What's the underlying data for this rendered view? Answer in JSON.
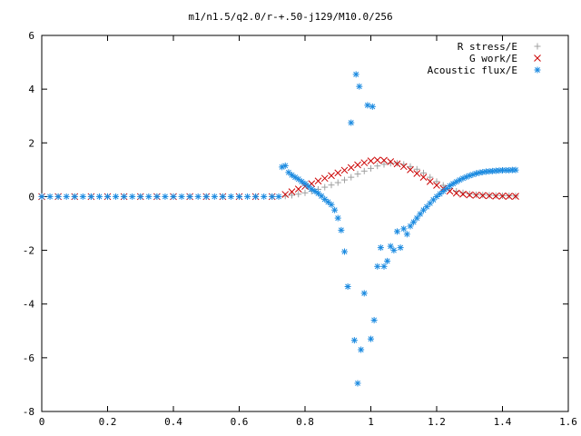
{
  "chart_data": {
    "type": "scatter",
    "title": "m1/n1.5/q2.0/r-+.50-j129/M10.0/256",
    "xlabel": "",
    "ylabel": "",
    "xlim": [
      0,
      1.6
    ],
    "ylim": [
      -8,
      6
    ],
    "xticks": [
      "0",
      "0.2",
      "0.4",
      "0.6",
      "0.8",
      "1",
      "1.2",
      "1.4",
      "1.6"
    ],
    "yticks": [
      "-8",
      "-6",
      "-4",
      "-2",
      "0",
      "2",
      "4",
      "6"
    ],
    "grid": false,
    "legend_position": "top-right",
    "series": [
      {
        "name": "R stress/E",
        "marker": "plus",
        "color": "#a0a0a0",
        "points": [
          [
            0.0,
            0
          ],
          [
            0.05,
            0
          ],
          [
            0.1,
            0
          ],
          [
            0.15,
            0
          ],
          [
            0.2,
            0
          ],
          [
            0.25,
            0
          ],
          [
            0.3,
            0
          ],
          [
            0.35,
            0
          ],
          [
            0.4,
            0
          ],
          [
            0.45,
            0
          ],
          [
            0.5,
            0
          ],
          [
            0.55,
            0
          ],
          [
            0.6,
            0
          ],
          [
            0.65,
            0
          ],
          [
            0.7,
            0
          ],
          [
            0.74,
            0.02
          ],
          [
            0.76,
            0.05
          ],
          [
            0.78,
            0.09
          ],
          [
            0.8,
            0.14
          ],
          [
            0.82,
            0.2
          ],
          [
            0.84,
            0.27
          ],
          [
            0.86,
            0.35
          ],
          [
            0.88,
            0.43
          ],
          [
            0.9,
            0.52
          ],
          [
            0.92,
            0.62
          ],
          [
            0.94,
            0.72
          ],
          [
            0.96,
            0.84
          ],
          [
            0.98,
            0.95
          ],
          [
            1.0,
            1.05
          ],
          [
            1.02,
            1.14
          ],
          [
            1.04,
            1.2
          ],
          [
            1.06,
            1.24
          ],
          [
            1.08,
            1.24
          ],
          [
            1.1,
            1.2
          ],
          [
            1.12,
            1.12
          ],
          [
            1.14,
            1.02
          ],
          [
            1.16,
            0.88
          ],
          [
            1.18,
            0.72
          ],
          [
            1.2,
            0.56
          ],
          [
            1.22,
            0.42
          ],
          [
            1.24,
            0.3
          ],
          [
            1.26,
            0.2
          ],
          [
            1.28,
            0.14
          ],
          [
            1.3,
            0.1
          ],
          [
            1.32,
            0.07
          ],
          [
            1.34,
            0.06
          ],
          [
            1.36,
            0.05
          ],
          [
            1.38,
            0.04
          ],
          [
            1.4,
            0.03
          ],
          [
            1.42,
            0.03
          ],
          [
            1.44,
            0.02
          ]
        ]
      },
      {
        "name": "G work/E",
        "marker": "cross",
        "color": "#cc0000",
        "points": [
          [
            0.0,
            0
          ],
          [
            0.05,
            0
          ],
          [
            0.1,
            0
          ],
          [
            0.15,
            0
          ],
          [
            0.2,
            0
          ],
          [
            0.25,
            0
          ],
          [
            0.3,
            0
          ],
          [
            0.35,
            0
          ],
          [
            0.4,
            0
          ],
          [
            0.45,
            0
          ],
          [
            0.5,
            0
          ],
          [
            0.55,
            0
          ],
          [
            0.6,
            0
          ],
          [
            0.65,
            0
          ],
          [
            0.7,
            0
          ],
          [
            0.74,
            0.08
          ],
          [
            0.76,
            0.18
          ],
          [
            0.78,
            0.28
          ],
          [
            0.8,
            0.38
          ],
          [
            0.82,
            0.48
          ],
          [
            0.84,
            0.58
          ],
          [
            0.86,
            0.68
          ],
          [
            0.88,
            0.78
          ],
          [
            0.9,
            0.88
          ],
          [
            0.92,
            0.98
          ],
          [
            0.94,
            1.08
          ],
          [
            0.96,
            1.18
          ],
          [
            0.98,
            1.26
          ],
          [
            1.0,
            1.33
          ],
          [
            1.02,
            1.36
          ],
          [
            1.04,
            1.35
          ],
          [
            1.06,
            1.3
          ],
          [
            1.08,
            1.22
          ],
          [
            1.1,
            1.12
          ],
          [
            1.12,
            1.0
          ],
          [
            1.14,
            0.86
          ],
          [
            1.16,
            0.72
          ],
          [
            1.18,
            0.56
          ],
          [
            1.2,
            0.42
          ],
          [
            1.22,
            0.3
          ],
          [
            1.24,
            0.2
          ],
          [
            1.26,
            0.13
          ],
          [
            1.28,
            0.09
          ],
          [
            1.3,
            0.06
          ],
          [
            1.32,
            0.05
          ],
          [
            1.34,
            0.04
          ],
          [
            1.36,
            0.03
          ],
          [
            1.38,
            0.02
          ],
          [
            1.4,
            0.02
          ],
          [
            1.42,
            0.01
          ],
          [
            1.44,
            0.01
          ]
        ]
      },
      {
        "name": "Acoustic flux/E",
        "marker": "star",
        "color": "#1a8ae0",
        "points": [
          [
            0.0,
            0
          ],
          [
            0.025,
            0
          ],
          [
            0.05,
            0
          ],
          [
            0.075,
            0
          ],
          [
            0.1,
            0
          ],
          [
            0.125,
            0
          ],
          [
            0.15,
            0
          ],
          [
            0.175,
            0
          ],
          [
            0.2,
            0
          ],
          [
            0.225,
            0
          ],
          [
            0.25,
            0
          ],
          [
            0.275,
            0
          ],
          [
            0.3,
            0
          ],
          [
            0.325,
            0
          ],
          [
            0.35,
            0
          ],
          [
            0.375,
            0
          ],
          [
            0.4,
            0
          ],
          [
            0.425,
            0
          ],
          [
            0.45,
            0
          ],
          [
            0.475,
            0
          ],
          [
            0.5,
            0
          ],
          [
            0.525,
            0
          ],
          [
            0.55,
            0
          ],
          [
            0.575,
            0
          ],
          [
            0.6,
            0
          ],
          [
            0.625,
            0
          ],
          [
            0.65,
            0
          ],
          [
            0.675,
            0
          ],
          [
            0.7,
            0
          ],
          [
            0.72,
            0
          ],
          [
            0.73,
            1.1
          ],
          [
            0.74,
            1.15
          ],
          [
            0.75,
            0.9
          ],
          [
            0.76,
            0.8
          ],
          [
            0.77,
            0.72
          ],
          [
            0.78,
            0.65
          ],
          [
            0.79,
            0.56
          ],
          [
            0.8,
            0.48
          ],
          [
            0.81,
            0.38
          ],
          [
            0.82,
            0.28
          ],
          [
            0.83,
            0.2
          ],
          [
            0.84,
            0.12
          ],
          [
            0.85,
            0.02
          ],
          [
            0.86,
            -0.1
          ],
          [
            0.87,
            -0.2
          ],
          [
            0.88,
            -0.3
          ],
          [
            0.89,
            -0.5
          ],
          [
            0.9,
            -0.8
          ],
          [
            0.91,
            -1.25
          ],
          [
            0.92,
            -2.05
          ],
          [
            0.93,
            -3.35
          ],
          [
            0.94,
            2.75
          ],
          [
            0.95,
            -5.35
          ],
          [
            0.955,
            4.55
          ],
          [
            0.96,
            -6.95
          ],
          [
            0.965,
            4.1
          ],
          [
            0.97,
            -5.7
          ],
          [
            0.98,
            -3.6
          ],
          [
            0.99,
            3.4
          ],
          [
            1.0,
            -5.3
          ],
          [
            1.005,
            3.35
          ],
          [
            1.01,
            -4.6
          ],
          [
            1.02,
            -2.6
          ],
          [
            1.03,
            -1.9
          ],
          [
            1.04,
            -2.6
          ],
          [
            1.05,
            -2.4
          ],
          [
            1.06,
            -1.85
          ],
          [
            1.07,
            -2.0
          ],
          [
            1.08,
            -1.3
          ],
          [
            1.09,
            -1.9
          ],
          [
            1.1,
            -1.2
          ],
          [
            1.11,
            -1.4
          ],
          [
            1.12,
            -1.1
          ],
          [
            1.13,
            -0.95
          ],
          [
            1.14,
            -0.8
          ],
          [
            1.15,
            -0.65
          ],
          [
            1.16,
            -0.5
          ],
          [
            1.17,
            -0.38
          ],
          [
            1.18,
            -0.25
          ],
          [
            1.19,
            -0.12
          ],
          [
            1.2,
            0.0
          ],
          [
            1.21,
            0.1
          ],
          [
            1.22,
            0.2
          ],
          [
            1.23,
            0.3
          ],
          [
            1.24,
            0.4
          ],
          [
            1.25,
            0.48
          ],
          [
            1.26,
            0.55
          ],
          [
            1.27,
            0.62
          ],
          [
            1.28,
            0.68
          ],
          [
            1.29,
            0.73
          ],
          [
            1.3,
            0.78
          ],
          [
            1.31,
            0.82
          ],
          [
            1.32,
            0.86
          ],
          [
            1.33,
            0.89
          ],
          [
            1.34,
            0.91
          ],
          [
            1.35,
            0.93
          ],
          [
            1.36,
            0.94
          ],
          [
            1.37,
            0.95
          ],
          [
            1.38,
            0.96
          ],
          [
            1.39,
            0.97
          ],
          [
            1.4,
            0.98
          ],
          [
            1.41,
            0.98
          ],
          [
            1.42,
            0.98
          ],
          [
            1.43,
            0.99
          ],
          [
            1.44,
            0.99
          ]
        ]
      }
    ]
  }
}
